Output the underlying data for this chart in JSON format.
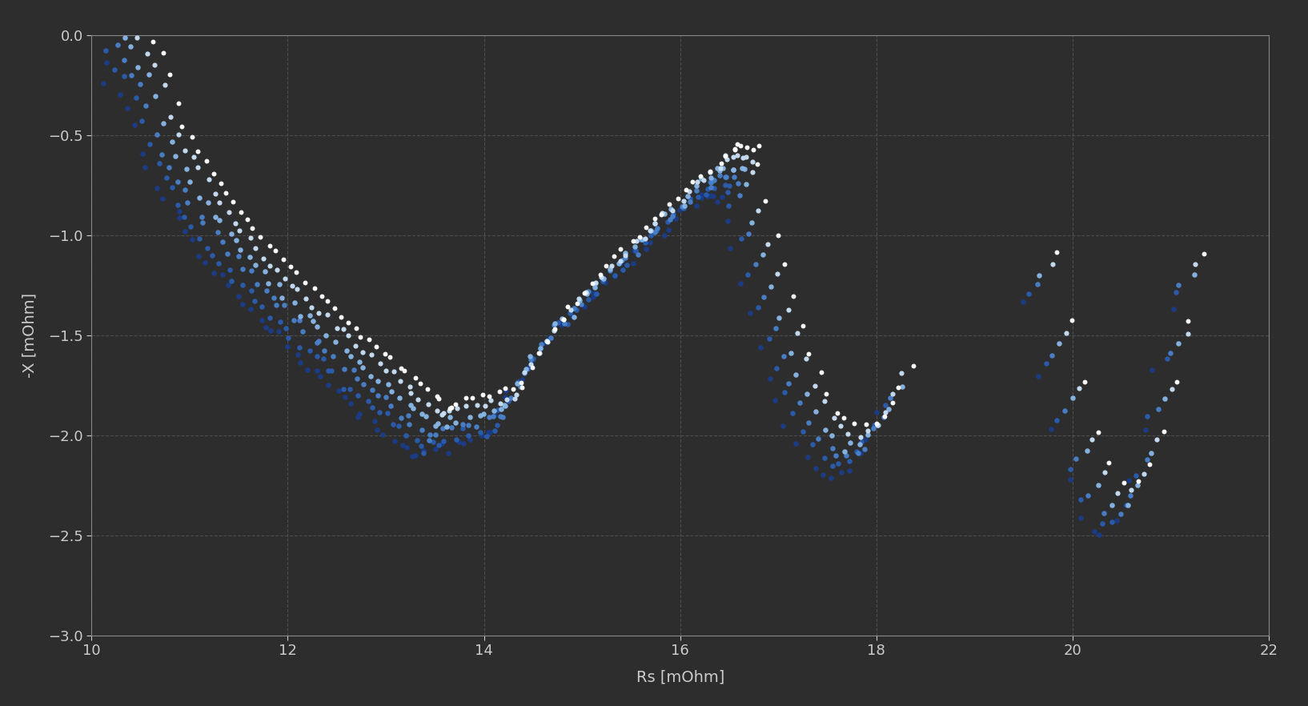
{
  "background_color": "#2d2d2d",
  "grid_color": "#555555",
  "axes_color": "#888888",
  "text_color": "#cccccc",
  "xlabel": "Rs [mOhm]",
  "ylabel": "-X [mOhm]",
  "xlim": [
    10,
    22
  ],
  "ylim": [
    -3,
    0
  ],
  "xticks": [
    10,
    12,
    14,
    16,
    18,
    20,
    22
  ],
  "yticks": [
    -3,
    -2.5,
    -2,
    -1.5,
    -1,
    -0.5,
    0
  ],
  "dot_size": 20,
  "figsize": [
    16.34,
    8.82
  ],
  "dpi": 100
}
